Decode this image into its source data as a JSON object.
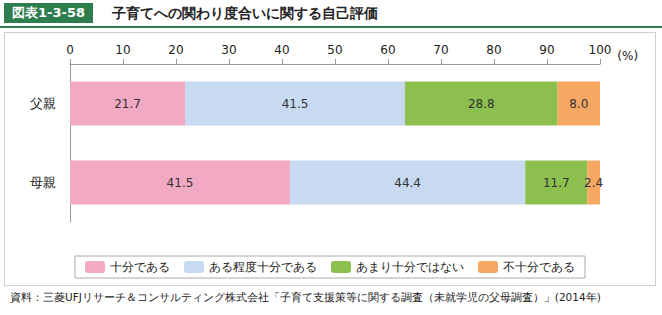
{
  "chart_data": {
    "type": "bar",
    "figure_number": "図表1-3-58",
    "title": "子育てへの関わり度合いに関する自己評価",
    "source": "資料：三菱UFJリサーチ＆コンサルティング株式会社「子育て支援策等に関する調査（未就学児の父母調査）」(2014年)",
    "xlabel": "(%)",
    "orientation": "horizontal",
    "stacked": true,
    "data_labels": true,
    "grid": false,
    "legend": "bottom",
    "categories": [
      "父親",
      "母親"
    ],
    "series": [
      {
        "name": "十分である",
        "color": "#f2a9c4",
        "values": [
          21.7,
          41.5
        ]
      },
      {
        "name": "ある程度十分である",
        "color": "#c8daf1",
        "values": [
          41.5,
          44.4
        ]
      },
      {
        "name": "あまり十分ではない",
        "color": "#8cbf4e",
        "values": [
          28.8,
          11.7
        ]
      },
      {
        "name": "不十分である",
        "color": "#f6a863",
        "values": [
          8.0,
          2.4
        ],
        "value_labels": [
          "8.0",
          "2.4"
        ]
      }
    ],
    "xlim": [
      0,
      100
    ],
    "xticks": [
      0,
      10,
      20,
      30,
      40,
      50,
      60,
      70,
      80,
      90,
      100
    ]
  }
}
